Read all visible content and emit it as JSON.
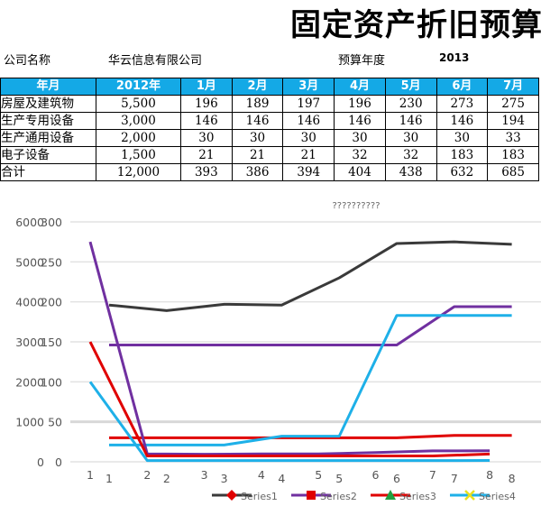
{
  "sheet": {
    "title": "固定资产折旧预算",
    "company_label": "公司名称",
    "company_value": "华云信息有限公司",
    "year_label": "预算年度",
    "year_value": "2013"
  },
  "table": {
    "headers": [
      "年月",
      "2012年",
      "1月",
      "2月",
      "3月",
      "4月",
      "5月",
      "6月",
      "7月"
    ],
    "rows": [
      [
        "房屋及建筑物",
        "5,500",
        "196",
        "189",
        "197",
        "196",
        "230",
        "273",
        "275"
      ],
      [
        "生产专用设备",
        "3,000",
        "146",
        "146",
        "146",
        "146",
        "146",
        "146",
        "194"
      ],
      [
        "生产通用设备",
        "2,000",
        "30",
        "30",
        "30",
        "30",
        "30",
        "30",
        "33"
      ],
      [
        "电子设备",
        "1,500",
        "21",
        "21",
        "21",
        "32",
        "32",
        "183",
        "183"
      ],
      [
        "合计",
        "12,000",
        "393",
        "386",
        "394",
        "404",
        "438",
        "632",
        "685"
      ]
    ]
  },
  "chart_data": {
    "type": "line",
    "title": "??????????",
    "grid": true,
    "legend_position": "bottom",
    "x": [
      1,
      2,
      3,
      4,
      5,
      6,
      7,
      8
    ],
    "primary_axis": {
      "ylim": [
        0,
        6000
      ],
      "ticks": [
        "0",
        "1000",
        "2000",
        "3000",
        "4000",
        "5000",
        "6000"
      ]
    },
    "secondary_axis": {
      "ylim": [
        0,
        300
      ],
      "ticks": [
        "0",
        "50",
        "100",
        "150",
        "200",
        "250",
        "300"
      ]
    },
    "primary_series": [
      {
        "color": "#7030a0",
        "values": [
          5500,
          196,
          189,
          197,
          196,
          230,
          273,
          275
        ]
      },
      {
        "color": "#e00000",
        "values": [
          3000,
          146,
          146,
          146,
          146,
          146,
          146,
          194
        ]
      },
      {
        "color": "#1eb0e8",
        "values": [
          2000,
          30,
          30,
          30,
          30,
          30,
          30,
          33
        ]
      }
    ],
    "secondary_series": [
      {
        "color": "#3a3a3a",
        "values": [
          196,
          189,
          197,
          196,
          230,
          273,
          275,
          272
        ]
      },
      {
        "color": "#7030a0",
        "values": [
          146,
          146,
          146,
          146,
          146,
          146,
          194,
          194
        ]
      },
      {
        "color": "#e00000",
        "values": [
          30,
          30,
          30,
          30,
          30,
          30,
          33,
          33
        ]
      },
      {
        "color": "#1eb0e8",
        "values": [
          21,
          21,
          21,
          32,
          32,
          183,
          183,
          183
        ]
      }
    ],
    "legend": [
      {
        "name": "Series1",
        "color": "#3a3a3a",
        "marker": "diamond"
      },
      {
        "name": "Series2",
        "color": "#7030a0",
        "marker": "square"
      },
      {
        "name": "Series3",
        "color": "#e00000",
        "marker": "triangle"
      },
      {
        "name": "Series4",
        "color": "#1eb0e8",
        "marker": "x"
      }
    ]
  }
}
